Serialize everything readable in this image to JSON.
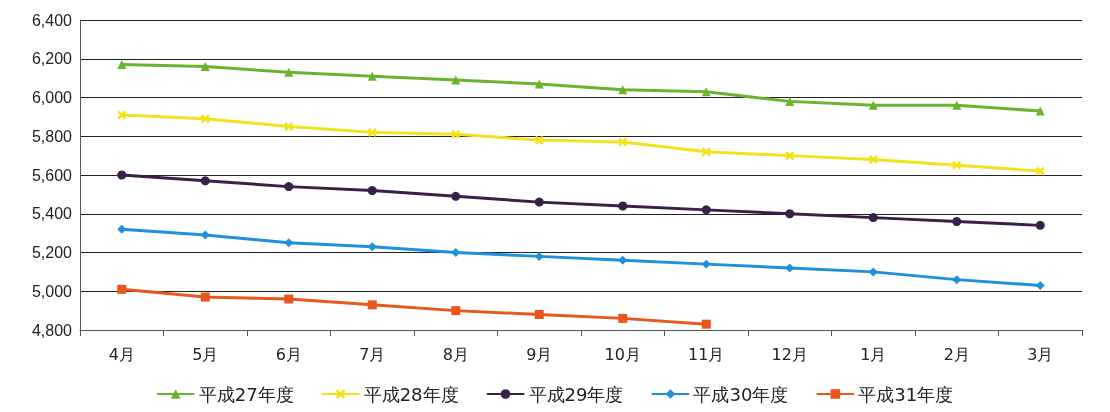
{
  "chart_data": {
    "type": "line",
    "categories": [
      "4月",
      "5月",
      "6月",
      "7月",
      "8月",
      "9月",
      "10月",
      "11月",
      "12月",
      "1月",
      "2月",
      "3月"
    ],
    "series": [
      {
        "name": "平成27年度",
        "color": "#6ab42d",
        "marker": "triangle",
        "values": [
          6170,
          6160,
          6130,
          6110,
          6090,
          6070,
          6040,
          6030,
          5980,
          5960,
          5960,
          5930
        ]
      },
      {
        "name": "平成28年度",
        "color": "#f2e21a",
        "marker": "cross",
        "values": [
          5910,
          5890,
          5850,
          5820,
          5810,
          5780,
          5770,
          5720,
          5700,
          5680,
          5650,
          5620
        ]
      },
      {
        "name": "平成29年度",
        "color": "#3a1f48",
        "marker": "circle",
        "values": [
          5600,
          5570,
          5540,
          5520,
          5490,
          5460,
          5440,
          5420,
          5400,
          5380,
          5360,
          5340
        ]
      },
      {
        "name": "平成30年度",
        "color": "#1e90dc",
        "marker": "diamond",
        "values": [
          5320,
          5290,
          5250,
          5230,
          5200,
          5180,
          5160,
          5140,
          5120,
          5100,
          5060,
          5030
        ]
      },
      {
        "name": "平成31年度",
        "color": "#e8581c",
        "marker": "square",
        "values": [
          5010,
          4970,
          4960,
          4930,
          4900,
          4880,
          4860,
          4830,
          null,
          null,
          null,
          null
        ]
      }
    ],
    "ylim": [
      4800,
      6400
    ],
    "yticks": [
      {
        "value": 4800,
        "label": "4,800"
      },
      {
        "value": 5000,
        "label": "5,000"
      },
      {
        "value": 5200,
        "label": "5,200"
      },
      {
        "value": 5400,
        "label": "5,400"
      },
      {
        "value": 5600,
        "label": "5,600"
      },
      {
        "value": 5800,
        "label": "5,800"
      },
      {
        "value": 6000,
        "label": "6,000"
      },
      {
        "value": 6200,
        "label": "6,200"
      },
      {
        "value": 6400,
        "label": "6,400"
      }
    ],
    "grid": "y",
    "legend": "bottom",
    "line_style": "solid"
  }
}
